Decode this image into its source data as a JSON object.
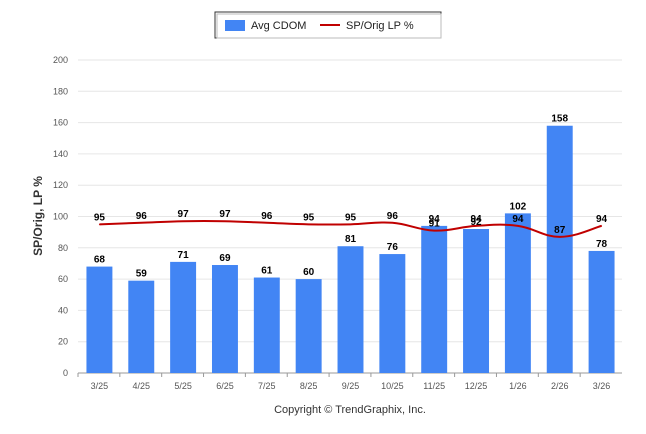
{
  "chart_data": {
    "type": "bar",
    "categories": [
      "3/25",
      "4/25",
      "5/25",
      "6/25",
      "7/25",
      "8/25",
      "9/25",
      "10/25",
      "11/25",
      "12/25",
      "1/26",
      "2/26",
      "3/26"
    ],
    "series": [
      {
        "name": "Avg CDOM",
        "type": "bar",
        "color": "#4285f4",
        "values": [
          68,
          59,
          71,
          69,
          61,
          60,
          81,
          76,
          94,
          92,
          102,
          158,
          78
        ]
      },
      {
        "name": "SP/Orig LP %",
        "type": "line",
        "color": "#c00000",
        "values": [
          95,
          96,
          97,
          97,
          96,
          95,
          95,
          96,
          91,
          94,
          94,
          87,
          94
        ],
        "labels": [
          "95",
          "96",
          "97",
          "97",
          "96",
          "95",
          "95",
          "96",
          "91",
          "94",
          "94",
          "87",
          "94"
        ]
      }
    ],
    "bar_labels": [
      "68",
      "59",
      "71",
      "69",
      "61",
      "60",
      "81",
      "76",
      "94",
      "92",
      "102",
      "158",
      "78"
    ],
    "yticks": [
      "0",
      "20",
      "40",
      "60",
      "80",
      "100",
      "120",
      "140",
      "160",
      "180",
      "200"
    ],
    "ylim": [
      0,
      200
    ],
    "ylabel": "SP/Orig, LP %",
    "xlabel": "",
    "title": "",
    "legend_position": "top-center",
    "grid": true
  },
  "legend": {
    "items": [
      {
        "label": "Avg CDOM",
        "color": "#4285f4"
      },
      {
        "label": "SP/Orig LP %",
        "color": "#c00000"
      }
    ]
  },
  "copyright": "Copyright © TrendGraphix, Inc."
}
